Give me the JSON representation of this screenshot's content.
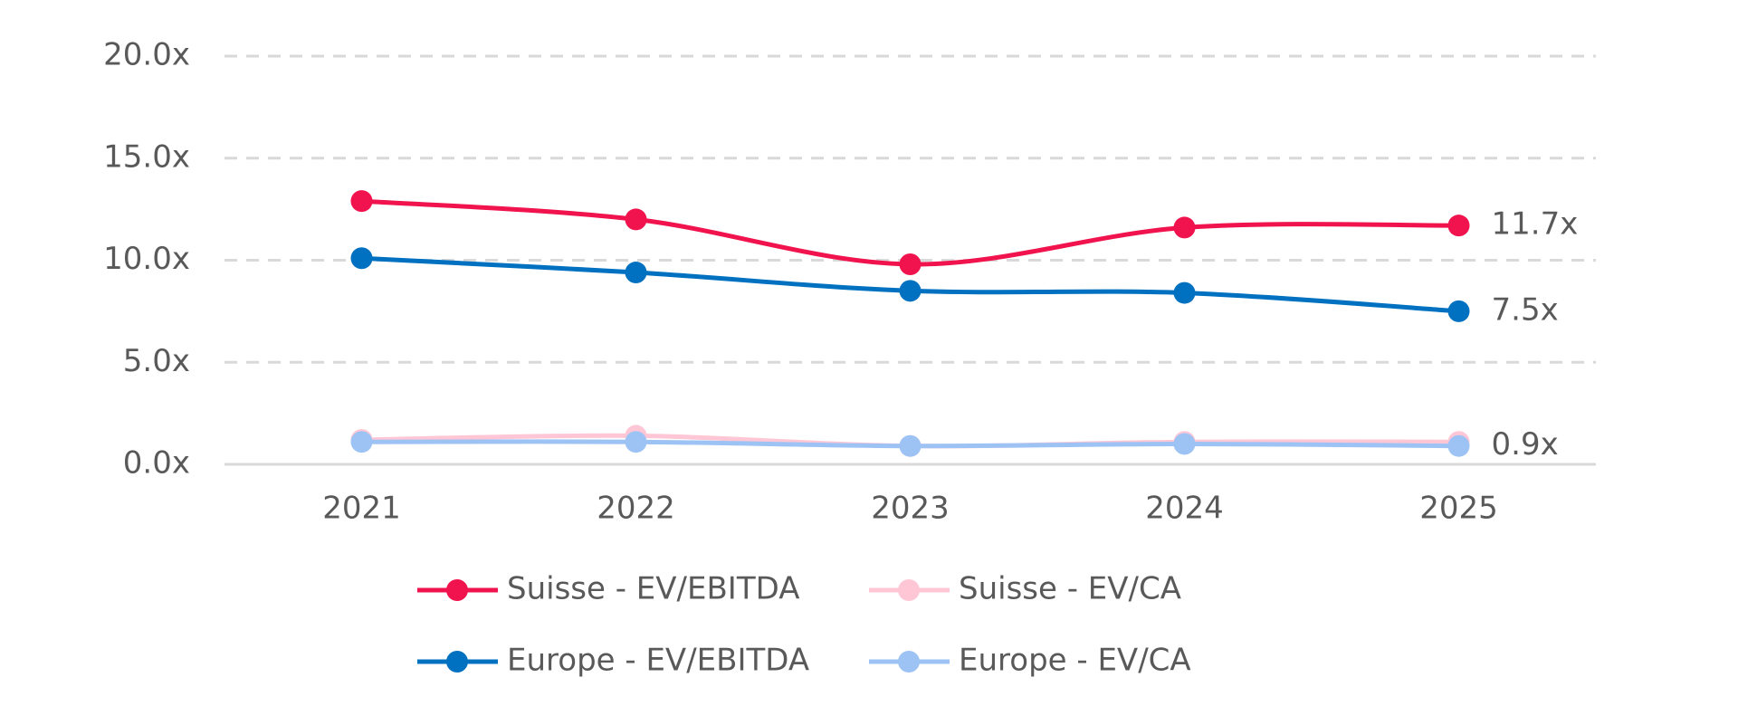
{
  "chart_data": {
    "type": "line",
    "categories": [
      "2021",
      "2022",
      "2023",
      "2024",
      "2025"
    ],
    "series": [
      {
        "name": "Suisse - EV/CA",
        "color": "#ffc7d6",
        "values": [
          1.2,
          1.4,
          0.9,
          1.1,
          1.1
        ]
      },
      {
        "name": "Europe - EV/CA",
        "color": "#9dc3f5",
        "values": [
          1.1,
          1.1,
          0.9,
          1.0,
          0.9
        ],
        "value_labels": [
          null,
          null,
          null,
          null,
          "0.9x"
        ]
      },
      {
        "name": "Europe - EV/EBITDA",
        "color": "#0070c0",
        "values": [
          10.1,
          9.4,
          8.5,
          8.4,
          7.5
        ],
        "value_labels": [
          null,
          null,
          null,
          null,
          "7.5x"
        ]
      },
      {
        "name": "Suisse - EV/EBITDA",
        "color": "#f0134d",
        "values": [
          12.9,
          12.0,
          9.8,
          11.6,
          11.7
        ],
        "value_labels": [
          null,
          null,
          null,
          null,
          "11.7x"
        ]
      }
    ],
    "ylim": [
      0,
      20
    ],
    "yticks": [
      {
        "value": 0,
        "label": "0.0x"
      },
      {
        "value": 5,
        "label": "5.0x"
      },
      {
        "value": 10,
        "label": "10.0x"
      },
      {
        "value": 15,
        "label": "15.0x"
      },
      {
        "value": 20,
        "label": "20.0x"
      }
    ],
    "grid": true,
    "smooth": true
  }
}
